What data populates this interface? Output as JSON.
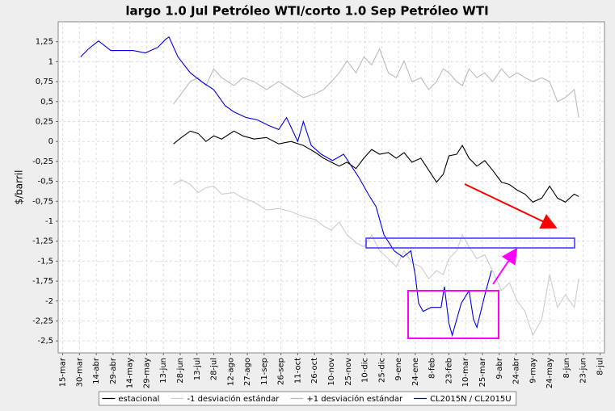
{
  "chart_data": {
    "type": "line",
    "title": "largo 1.0 Jul Petróleo WTI/corto 1.0 Sep Petróleo WTI",
    "y_label": "$/barril",
    "xlim": [
      -4,
      484
    ],
    "ylim": [
      -2.65,
      1.5
    ],
    "grid": true,
    "legend": "bottom",
    "xticks": [
      {
        "value": 0,
        "label": "15-mar"
      },
      {
        "value": 15,
        "label": "30-mar"
      },
      {
        "value": 30,
        "label": "14-abr"
      },
      {
        "value": 45,
        "label": "29-abr"
      },
      {
        "value": 60,
        "label": "14-may"
      },
      {
        "value": 75,
        "label": "29-may"
      },
      {
        "value": 90,
        "label": "13-jun"
      },
      {
        "value": 105,
        "label": "28-jun"
      },
      {
        "value": 120,
        "label": "13-jul"
      },
      {
        "value": 135,
        "label": "28-jul"
      },
      {
        "value": 150,
        "label": "12-ago"
      },
      {
        "value": 165,
        "label": "27-ago"
      },
      {
        "value": 180,
        "label": "11-sep"
      },
      {
        "value": 195,
        "label": "26-sep"
      },
      {
        "value": 210,
        "label": "11-oct"
      },
      {
        "value": 225,
        "label": "26-oct"
      },
      {
        "value": 240,
        "label": "10-nov"
      },
      {
        "value": 255,
        "label": "25-nov"
      },
      {
        "value": 270,
        "label": "10-dic"
      },
      {
        "value": 285,
        "label": "25-dic"
      },
      {
        "value": 300,
        "label": "9-ene"
      },
      {
        "value": 315,
        "label": "24-ene"
      },
      {
        "value": 330,
        "label": "8-feb"
      },
      {
        "value": 345,
        "label": "23-feb"
      },
      {
        "value": 360,
        "label": "10-mar"
      },
      {
        "value": 375,
        "label": "25-mar"
      },
      {
        "value": 390,
        "label": "9-abr"
      },
      {
        "value": 405,
        "label": "24-abr"
      },
      {
        "value": 420,
        "label": "9-may"
      },
      {
        "value": 435,
        "label": "24-may"
      },
      {
        "value": 450,
        "label": "8-jun"
      },
      {
        "value": 465,
        "label": "23-jun"
      },
      {
        "value": 480,
        "label": "8-jul"
      }
    ],
    "yticks": [
      {
        "value": 1.25,
        "label": "1,25"
      },
      1,
      {
        "value": 0.75,
        "label": "0,75"
      },
      {
        "value": 0.5,
        "label": "0,5"
      },
      {
        "value": 0.25,
        "label": "0,25"
      },
      0,
      {
        "value": -0.25,
        "label": "-0,25"
      },
      {
        "value": -0.5,
        "label": "-0,5"
      },
      {
        "value": -0.75,
        "label": "-0,75"
      },
      -1,
      {
        "value": -1.25,
        "label": "-1,25"
      },
      {
        "value": -1.5,
        "label": "-1,5"
      },
      {
        "value": -1.75,
        "label": "-1,75"
      },
      -2,
      {
        "value": -2.25,
        "label": "-2,25"
      },
      {
        "value": -2.5,
        "label": "-2,5"
      }
    ],
    "series": [
      {
        "name": "estacional",
        "color": "#000000",
        "x": [
          99,
          106,
          114,
          121,
          128,
          135,
          142,
          153,
          161,
          171,
          182,
          193,
          204,
          215,
          226,
          233,
          240,
          247,
          254,
          262,
          269,
          276,
          283,
          291,
          298,
          305,
          312,
          320,
          327,
          334,
          340,
          345,
          352,
          357,
          363,
          370,
          377,
          384,
          392,
          399,
          406,
          413,
          420,
          428,
          435,
          442,
          449,
          457,
          461
        ],
        "values": [
          -0.03,
          0.05,
          0.13,
          0.1,
          0.0,
          0.07,
          0.03,
          0.13,
          0.07,
          0.03,
          0.05,
          -0.03,
          0.0,
          -0.05,
          -0.14,
          -0.21,
          -0.26,
          -0.31,
          -0.26,
          -0.34,
          -0.21,
          -0.1,
          -0.16,
          -0.14,
          -0.21,
          -0.14,
          -0.26,
          -0.21,
          -0.36,
          -0.51,
          -0.41,
          -0.18,
          -0.16,
          -0.05,
          -0.21,
          -0.31,
          -0.24,
          -0.36,
          -0.51,
          -0.54,
          -0.61,
          -0.66,
          -0.76,
          -0.71,
          -0.56,
          -0.71,
          -0.76,
          -0.66,
          -0.69
        ]
      },
      {
        "name": "-1 desviación estándar",
        "color": "#cccccc",
        "x": [
          99,
          106,
          114,
          121,
          128,
          135,
          142,
          153,
          161,
          171,
          182,
          193,
          204,
          215,
          226,
          233,
          240,
          247,
          254,
          262,
          269,
          276,
          283,
          291,
          298,
          305,
          312,
          320,
          327,
          334,
          340,
          345,
          352,
          357,
          363,
          370,
          377,
          384,
          392,
          399,
          406,
          413,
          420,
          428,
          435,
          442,
          449,
          457,
          461
        ],
        "values": [
          -0.54,
          -0.48,
          -0.54,
          -0.64,
          -0.58,
          -0.56,
          -0.66,
          -0.64,
          -0.71,
          -0.76,
          -0.86,
          -0.84,
          -0.88,
          -0.94,
          -0.98,
          -1.06,
          -1.11,
          -1.01,
          -1.17,
          -1.27,
          -1.32,
          -1.17,
          -1.37,
          -1.47,
          -1.57,
          -1.37,
          -1.52,
          -1.57,
          -1.72,
          -1.62,
          -1.67,
          -1.47,
          -1.37,
          -1.17,
          -1.32,
          -1.47,
          -1.42,
          -1.62,
          -1.87,
          -1.77,
          -2.0,
          -2.13,
          -2.43,
          -2.23,
          -1.67,
          -2.08,
          -1.92,
          -2.08,
          -1.72
        ]
      },
      {
        "name": "+1 desviación estándar",
        "color": "#bbbbbb",
        "x": [
          99,
          106,
          114,
          121,
          128,
          135,
          142,
          153,
          161,
          171,
          182,
          193,
          204,
          215,
          226,
          233,
          240,
          247,
          254,
          262,
          269,
          276,
          283,
          291,
          298,
          305,
          312,
          320,
          327,
          334,
          340,
          345,
          352,
          357,
          363,
          370,
          377,
          384,
          392,
          399,
          406,
          413,
          420,
          428,
          435,
          442,
          449,
          457,
          461
        ],
        "values": [
          0.47,
          0.6,
          0.75,
          0.8,
          0.7,
          0.91,
          0.8,
          0.7,
          0.8,
          0.75,
          0.65,
          0.75,
          0.65,
          0.55,
          0.6,
          0.65,
          0.75,
          0.86,
          1.01,
          0.86,
          1.06,
          0.96,
          1.16,
          0.86,
          0.8,
          1.01,
          0.75,
          0.8,
          0.65,
          0.75,
          0.91,
          0.86,
          0.75,
          0.7,
          0.91,
          0.8,
          0.86,
          0.75,
          0.91,
          0.8,
          0.86,
          0.8,
          0.75,
          0.8,
          0.75,
          0.5,
          0.55,
          0.65,
          0.3
        ]
      },
      {
        "name": "CL2015N / CL2015U",
        "color": "#0000e6",
        "x": [
          16,
          23,
          32,
          43,
          52,
          63,
          74,
          85,
          92,
          95,
          103,
          114,
          124,
          135,
          145,
          153,
          164,
          174,
          184,
          193,
          200,
          210,
          215,
          222,
          231,
          241,
          251,
          258,
          265,
          273,
          280,
          287,
          296,
          304,
          311,
          315,
          318,
          322,
          329,
          338,
          341,
          345,
          348,
          356,
          363,
          367,
          370,
          377,
          383
        ],
        "values": [
          1.06,
          1.16,
          1.26,
          1.14,
          1.14,
          1.14,
          1.11,
          1.18,
          1.28,
          1.31,
          1.06,
          0.86,
          0.75,
          0.65,
          0.45,
          0.37,
          0.3,
          0.27,
          0.2,
          0.15,
          0.3,
          0.0,
          0.25,
          -0.05,
          -0.16,
          -0.24,
          -0.16,
          -0.31,
          -0.46,
          -0.66,
          -0.82,
          -1.17,
          -1.37,
          -1.45,
          -1.37,
          -1.68,
          -2.03,
          -2.13,
          -2.08,
          -2.08,
          -1.82,
          -2.28,
          -2.43,
          -2.03,
          -1.87,
          -2.23,
          -2.33,
          -1.93,
          -1.62
        ]
      }
    ]
  }
}
